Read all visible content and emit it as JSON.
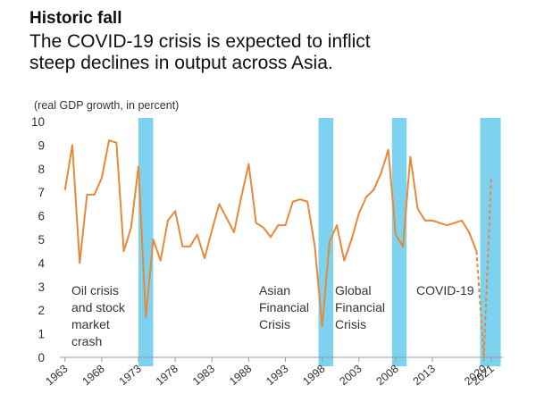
{
  "chart_data": {
    "type": "line",
    "title": "Historic fall",
    "subtitle": [
      "The COVID-19 crisis is expected to inflict",
      "steep declines in output across Asia."
    ],
    "y_label": "(real GDP growth, in percent)",
    "x": [
      1963,
      1964,
      1965,
      1966,
      1967,
      1968,
      1969,
      1970,
      1971,
      1972,
      1973,
      1974,
      1975,
      1976,
      1977,
      1978,
      1979,
      1980,
      1981,
      1982,
      1983,
      1984,
      1985,
      1986,
      1987,
      1988,
      1989,
      1990,
      1991,
      1992,
      1993,
      1994,
      1995,
      1996,
      1997,
      1998,
      1999,
      2000,
      2001,
      2002,
      2003,
      2004,
      2005,
      2006,
      2007,
      2008,
      2009,
      2010,
      2011,
      2012,
      2013,
      2014,
      2015,
      2016,
      2017,
      2018,
      2019,
      2020,
      2021
    ],
    "series": [
      {
        "color": "#e8883a",
        "dashed": false,
        "values": [
          7.1,
          9.0,
          4.0,
          6.9,
          6.9,
          7.6,
          9.2,
          9.1,
          4.5,
          5.5,
          8.1,
          1.7,
          5.0,
          4.1,
          5.8,
          6.2,
          4.7,
          4.7,
          5.2,
          4.2,
          5.4,
          6.5,
          5.9,
          5.3,
          6.8,
          8.2,
          5.7,
          5.5,
          5.1,
          5.6,
          5.6,
          6.6,
          6.7,
          6.6,
          4.7,
          1.3,
          4.9,
          5.6,
          4.1,
          5.0,
          6.1,
          6.8,
          7.1,
          7.8,
          8.8,
          5.2,
          4.7,
          8.5,
          6.3,
          5.8,
          5.8,
          5.7,
          5.6,
          5.7,
          5.8,
          5.3,
          4.5,
          null,
          null
        ]
      },
      {
        "color": "#e8883a",
        "dashed": true,
        "values": [
          null,
          null,
          null,
          null,
          null,
          null,
          null,
          null,
          null,
          null,
          null,
          null,
          null,
          null,
          null,
          null,
          null,
          null,
          null,
          null,
          null,
          null,
          null,
          null,
          null,
          null,
          null,
          null,
          null,
          null,
          null,
          null,
          null,
          null,
          null,
          null,
          null,
          null,
          null,
          null,
          null,
          null,
          null,
          null,
          null,
          null,
          null,
          null,
          null,
          null,
          null,
          null,
          null,
          null,
          null,
          null,
          4.5,
          0.0,
          7.6
        ]
      }
    ],
    "shaded_bands": [
      [
        1973,
        1975
      ],
      [
        1997.5,
        1999.5
      ],
      [
        2007.5,
        2009.5
      ],
      [
        2019.5,
        2022.3
      ]
    ],
    "band_color": "#7dd3ef",
    "annotations": [
      {
        "lines": [
          "Oil crisis",
          "and stock",
          "market",
          "crash"
        ]
      },
      {
        "lines": [
          "Asian",
          "Financial",
          "Crisis"
        ]
      },
      {
        "lines": [
          "Global",
          "Financial",
          "Crisis"
        ]
      },
      {
        "lines": [
          "COVID-19"
        ]
      }
    ],
    "xlim": [
      1962.3,
      2022.6
    ],
    "ylim": [
      0,
      10
    ],
    "yticks": [
      0,
      1,
      2,
      3,
      4,
      5,
      6,
      7,
      8,
      9,
      10
    ],
    "xticks": [
      1963,
      1968,
      1973,
      1978,
      1983,
      1988,
      1993,
      1998,
      2003,
      2008,
      2013,
      2020,
      2021
    ],
    "grid": false
  }
}
